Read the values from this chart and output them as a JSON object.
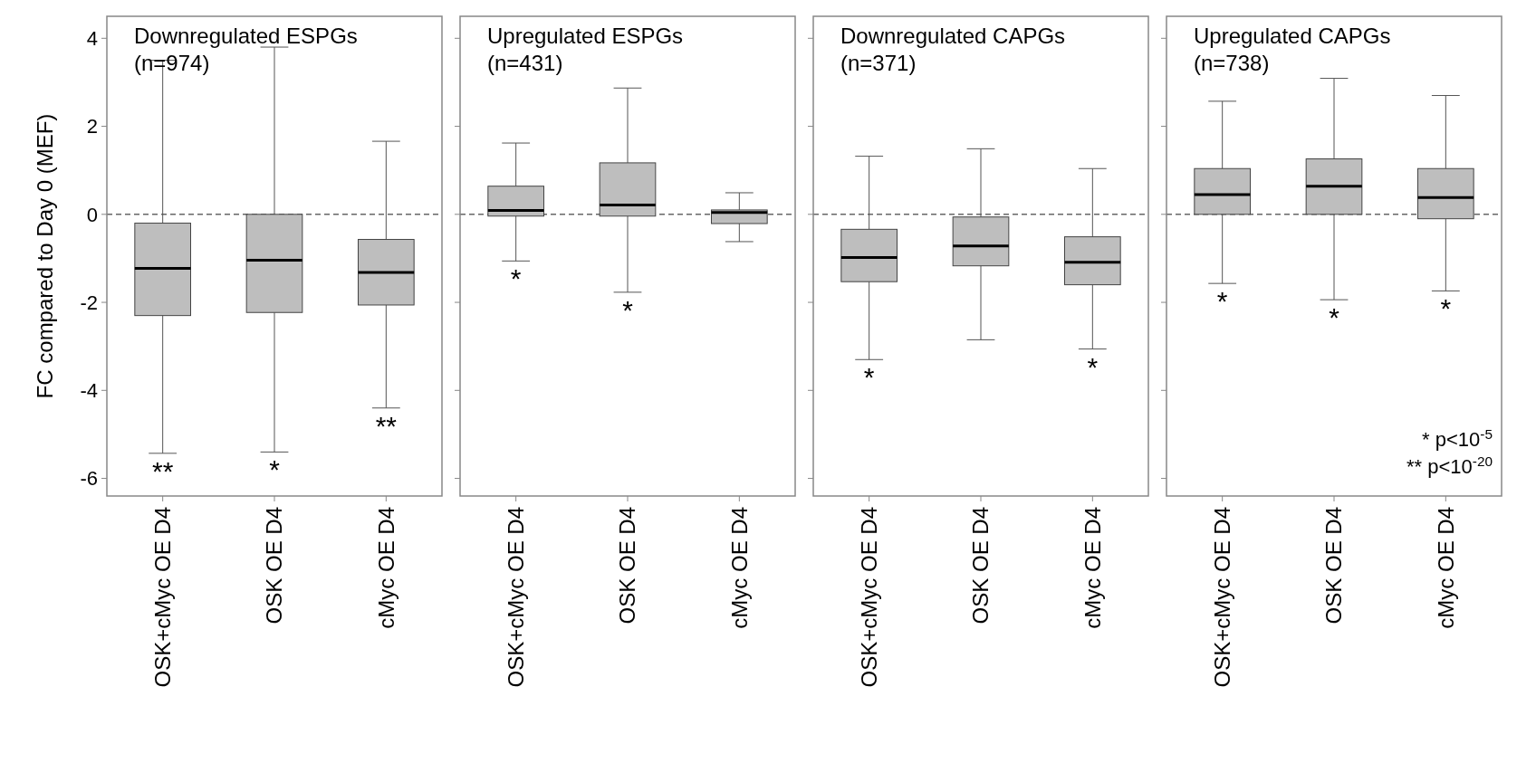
{
  "chart_data": [
    {
      "type": "box",
      "title": "Downregulated ESPGs",
      "subtitle": "(n=974)",
      "ylabel": "FC compared to Day 0 (MEF)",
      "categories": [
        "OSK+cMyc OE D4",
        "OSK OE D4",
        "cMyc OE D4"
      ],
      "color": "#bebebe",
      "ylim": [
        -6.4,
        4.5
      ],
      "yticks": [
        4,
        2,
        0,
        -2,
        -4,
        -6
      ],
      "grid": false,
      "boxes": [
        {
          "low": -5.43,
          "q1": -2.3,
          "median": -1.23,
          "q3": -0.2,
          "high": 3.5
        },
        {
          "low": -5.4,
          "q1": -2.23,
          "median": -1.04,
          "q3": 0,
          "high": 3.8
        },
        {
          "low": -4.4,
          "q1": -2.06,
          "median": -1.32,
          "q3": -0.57,
          "high": 1.66
        }
      ],
      "ref_lines": [
        {
          "axis": "y",
          "value": 0,
          "line_style": "dashed",
          "color": "#666666"
        }
      ],
      "annotations": [
        {
          "text": "**",
          "x": "OSK+cMyc OE D4",
          "y": -5.43
        },
        {
          "text": "*",
          "x": "OSK OE D4",
          "y": -5.4
        },
        {
          "text": "**",
          "x": "cMyc OE D4",
          "y": -4.4
        }
      ]
    },
    {
      "type": "box",
      "title": "Upregulated ESPGs",
      "subtitle": "(n=431)",
      "categories": [
        "OSK+cMyc OE D4",
        "OSK OE D4",
        "cMyc OE D4"
      ],
      "color": "#bebebe",
      "ylim": [
        -6.4,
        4.5
      ],
      "yticks": [
        {
          "value": 4,
          "label": null
        },
        {
          "value": 2,
          "label": null
        },
        {
          "value": 0,
          "label": null
        },
        {
          "value": -2,
          "label": null
        },
        {
          "value": -4,
          "label": null
        },
        {
          "value": -6,
          "label": null
        }
      ],
      "tick_labels": "x",
      "grid": false,
      "boxes": [
        {
          "low": -1.06,
          "q1": -0.04,
          "median": 0.09,
          "q3": 0.64,
          "high": 1.62
        },
        {
          "low": -1.77,
          "q1": -0.04,
          "median": 0.21,
          "q3": 1.17,
          "high": 2.87
        },
        {
          "low": -0.62,
          "q1": -0.21,
          "median": 0.04,
          "q3": 0.1,
          "high": 0.49
        }
      ],
      "ref_lines": [
        {
          "axis": "y",
          "value": 0,
          "line_style": "dashed",
          "color": "#666666"
        }
      ],
      "annotations": [
        {
          "text": "*",
          "x": "OSK+cMyc OE D4",
          "y": -1.06
        },
        {
          "text": "*",
          "x": "OSK OE D4",
          "y": -1.77
        }
      ]
    },
    {
      "type": "box",
      "title": "Downregulated CAPGs",
      "subtitle": "(n=371)",
      "categories": [
        "OSK+cMyc OE D4",
        "OSK OE D4",
        "cMyc OE D4"
      ],
      "color": "#bebebe",
      "ylim": [
        -6.4,
        4.5
      ],
      "yticks": [
        {
          "value": 4,
          "label": null
        },
        {
          "value": 2,
          "label": null
        },
        {
          "value": 0,
          "label": null
        },
        {
          "value": -2,
          "label": null
        },
        {
          "value": -4,
          "label": null
        },
        {
          "value": -6,
          "label": null
        }
      ],
      "tick_labels": "x",
      "grid": false,
      "boxes": [
        {
          "low": -3.3,
          "q1": -1.53,
          "median": -0.98,
          "q3": -0.34,
          "high": 1.32
        },
        {
          "low": -2.85,
          "q1": -1.17,
          "median": -0.72,
          "q3": -0.06,
          "high": 1.49
        },
        {
          "low": -3.06,
          "q1": -1.6,
          "median": -1.09,
          "q3": -0.51,
          "high": 1.04
        }
      ],
      "ref_lines": [
        {
          "axis": "y",
          "value": 0,
          "line_style": "dashed",
          "color": "#666666"
        }
      ],
      "annotations": [
        {
          "text": "*",
          "x": "OSK+cMyc OE D4",
          "y": -3.3
        },
        {
          "text": "*",
          "x": "cMyc OE D4",
          "y": -3.06
        }
      ]
    },
    {
      "type": "box",
      "title": "Upregulated CAPGs",
      "subtitle": "(n=738)",
      "categories": [
        "OSK+cMyc OE D4",
        "OSK OE D4",
        "cMyc OE D4"
      ],
      "color": "#bebebe",
      "ylim": [
        -6.4,
        4.5
      ],
      "yticks": [
        {
          "value": 4,
          "label": null
        },
        {
          "value": 2,
          "label": null
        },
        {
          "value": 0,
          "label": null
        },
        {
          "value": -2,
          "label": null
        },
        {
          "value": -4,
          "label": null
        },
        {
          "value": -6,
          "label": null
        }
      ],
      "tick_labels": "x",
      "grid": false,
      "boxes": [
        {
          "low": -1.57,
          "q1": 0,
          "median": 0.45,
          "q3": 1.04,
          "high": 2.57
        },
        {
          "low": -1.94,
          "q1": 0,
          "median": 0.64,
          "q3": 1.26,
          "high": 3.09
        },
        {
          "low": -1.74,
          "q1": -0.1,
          "median": 0.38,
          "q3": 1.04,
          "high": 2.7
        }
      ],
      "ref_lines": [
        {
          "axis": "y",
          "value": 0,
          "line_style": "dashed",
          "color": "#666666"
        }
      ],
      "annotations": [
        {
          "text": "*",
          "x": "OSK+cMyc OE D4",
          "y": -1.57
        },
        {
          "text": "*",
          "x": "OSK OE D4",
          "y": -1.94
        },
        {
          "text": "*",
          "x": "cMyc OE D4",
          "y": -1.74
        },
        "* p<10$^{-5}$",
        "** p<10$^{-20}$"
      ]
    }
  ]
}
